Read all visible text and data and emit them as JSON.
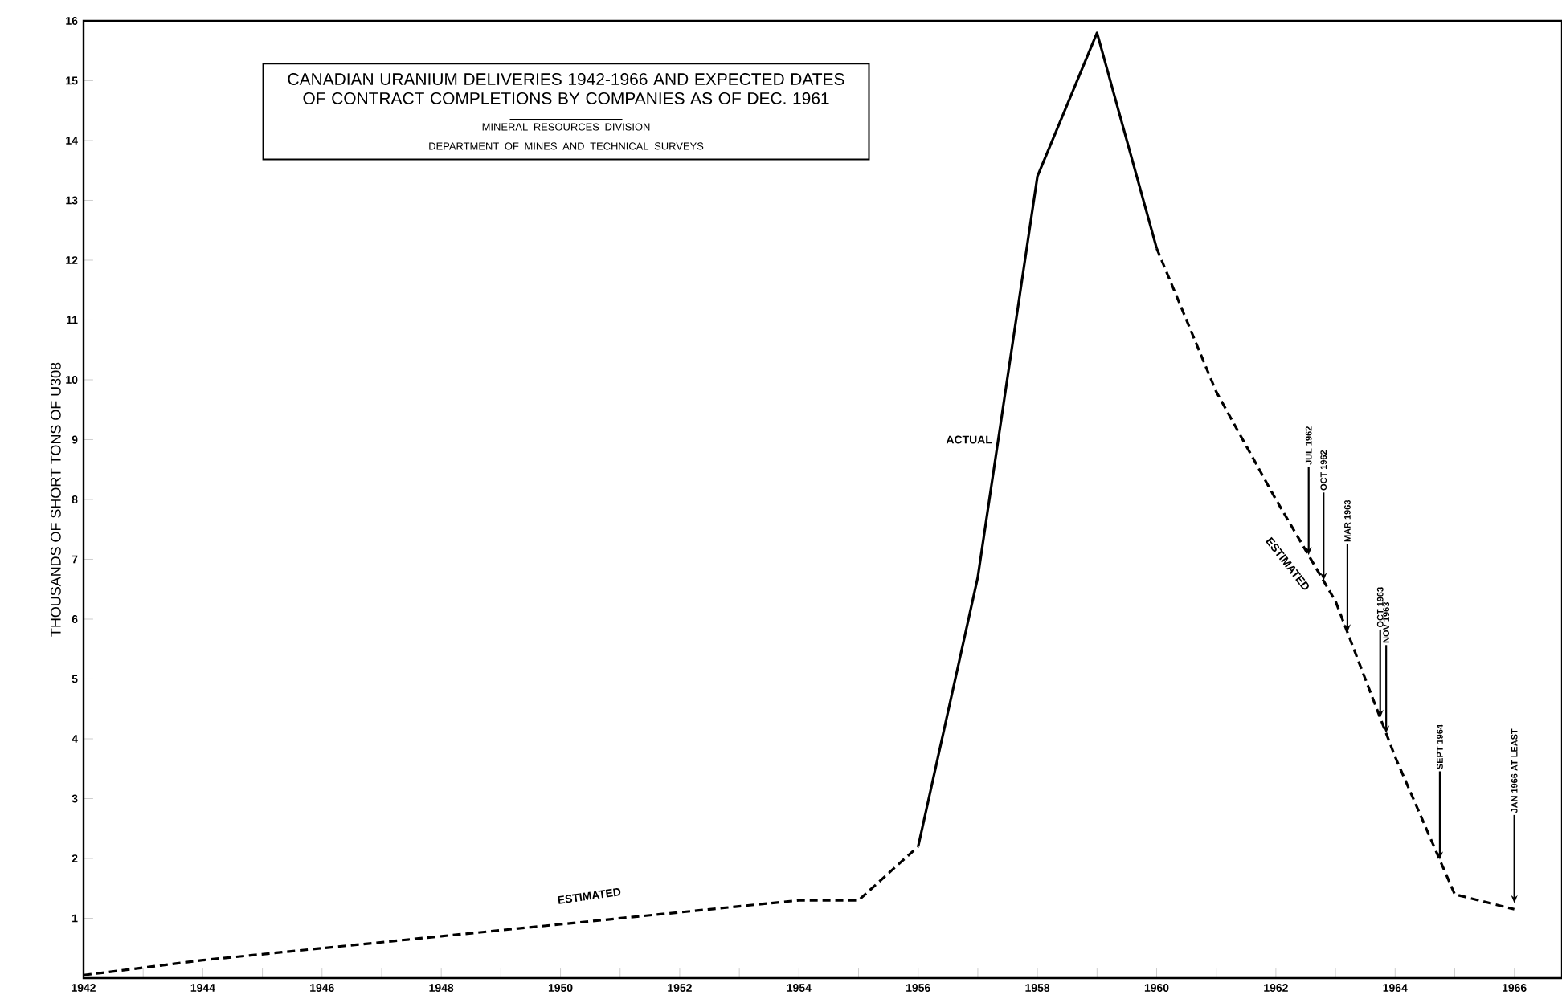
{
  "chart_data": {
    "type": "line",
    "title": "CANADIAN URANIUM DELIVERIES 1942-1966 AND EXPECTED DATES OF CONTRACT COMPLETIONS BY COMPANIES AS OF DEC. 1961",
    "ylabel": "THOUSANDS OF SHORT TONS OF U308",
    "xlim": [
      1942,
      1966.8
    ],
    "ylim": [
      0,
      16
    ],
    "xticks": [
      1942,
      {
        "value": 1943,
        "label": null
      },
      1944,
      {
        "value": 1945,
        "label": null
      },
      1946,
      {
        "value": 1947,
        "label": null
      },
      1948,
      {
        "value": 1949,
        "label": null
      },
      1950,
      {
        "value": 1951,
        "label": null
      },
      1952,
      {
        "value": 1953,
        "label": null
      },
      1954,
      {
        "value": 1955,
        "label": null
      },
      1956,
      {
        "value": 1957,
        "label": null
      },
      1958,
      {
        "value": 1959,
        "label": null
      },
      1960,
      {
        "value": 1961,
        "label": null
      },
      1962,
      {
        "value": 1963,
        "label": null
      },
      1964,
      {
        "value": 1965,
        "label": null
      },
      1966
    ],
    "yticks": [
      1,
      2,
      3,
      4,
      5,
      6,
      7,
      8,
      9,
      10,
      11,
      12,
      13,
      14,
      15,
      16
    ],
    "grid": false,
    "marker": "none",
    "series": [
      {
        "name": "ESTIMATED",
        "color": "#000000",
        "line_style": "dashed",
        "x": [
          1942,
          1944,
          1946,
          1948,
          1950,
          1952,
          1954,
          1955,
          1956
        ],
        "values": [
          0.05,
          0.3,
          0.5,
          0.7,
          0.9,
          1.1,
          1.3,
          1.3,
          2.2
        ]
      },
      {
        "name": "ACTUAL",
        "color": "#000000",
        "line_style": "solid",
        "x": [
          1956,
          1957,
          1958,
          1959,
          1960
        ],
        "values": [
          2.2,
          6.7,
          13.4,
          15.8,
          12.2
        ]
      },
      {
        "name": "ESTIMATED",
        "color": "#000000",
        "line_style": "dashed",
        "x": [
          1960,
          1961,
          1962,
          1963,
          1964,
          1965,
          1966
        ],
        "values": [
          12.2,
          9.8,
          8.0,
          6.3,
          3.7,
          1.4,
          1.15
        ]
      }
    ],
    "annotations": [
      "MINERAL RESOURCES DIVISION",
      "DEPARTMENT OF MINES AND TECHNICAL SURVEYS",
      {
        "text": "JUL 1962",
        "x": 1962.55,
        "y": 7.07
      },
      {
        "text": "OCT 1962",
        "x": 1962.8,
        "y": 6.64
      },
      {
        "text": "MAR 1963",
        "x": 1963.2,
        "y": 5.78
      },
      {
        "text": "OCT 1963",
        "x": 1963.75,
        "y": 4.35
      },
      {
        "text": "NOV 1963",
        "x": 1963.85,
        "y": 4.09
      },
      {
        "text": "SEPT 1964",
        "x": 1964.75,
        "y": 1.98
      },
      {
        "text": "JAN 1966 AT LEAST",
        "x": 1966,
        "y": 1.25
      }
    ]
  }
}
